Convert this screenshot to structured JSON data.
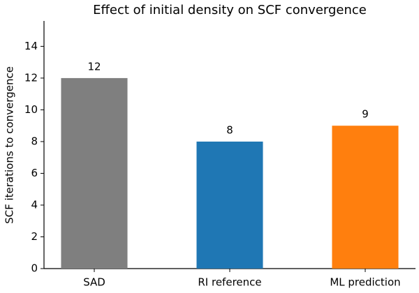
{
  "chart_data": {
    "type": "bar",
    "title": "Effect of initial density on SCF convergence",
    "y_label": "SCF iterations to convergence",
    "categories": [
      "SAD",
      "RI reference",
      "ML prediction"
    ],
    "values": [
      12,
      8,
      9
    ],
    "colors": [
      "#7f7f7f",
      "#1f77b4",
      "#ff7f0e"
    ],
    "ylim": [
      0,
      15.6
    ],
    "yticks": [
      0,
      2,
      4,
      6,
      8,
      10,
      12,
      14
    ],
    "grid": false
  }
}
